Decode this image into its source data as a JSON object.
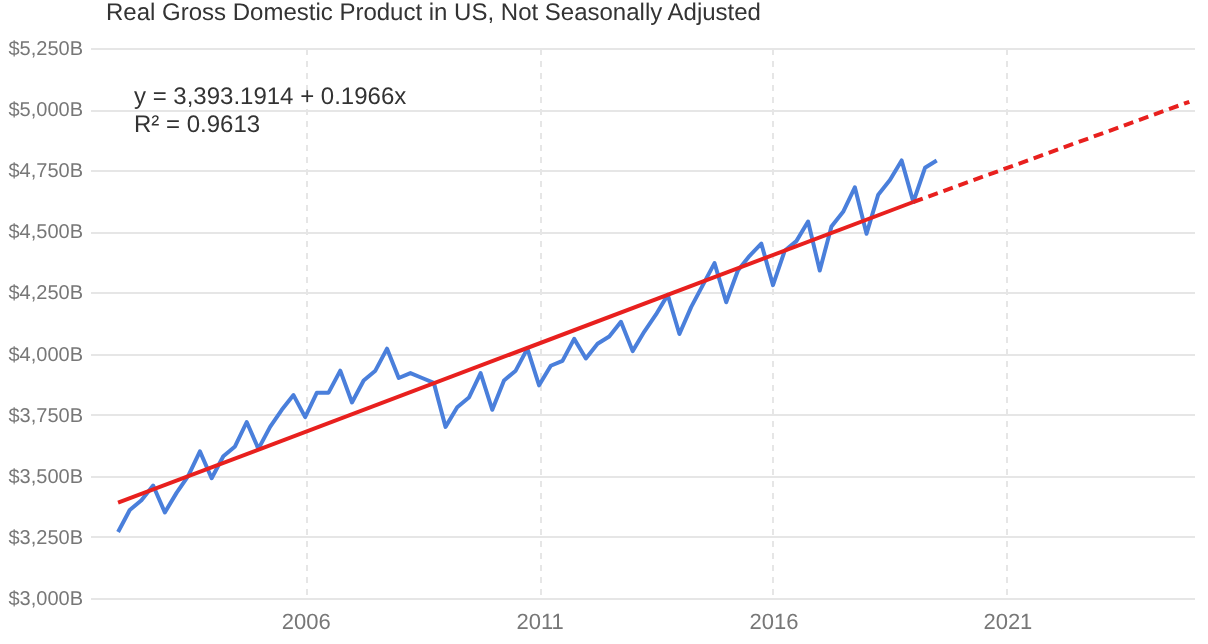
{
  "chart_data": {
    "type": "line",
    "title": "Real Gross Domestic Product in US, Not Seasonally Adjusted",
    "annotations": [
      "y = 3,393.1914 + 0.1966x",
      "R² = 0.9613"
    ],
    "x": [
      2002,
      2002.25,
      2002.5,
      2002.75,
      2003,
      2003.25,
      2003.5,
      2003.75,
      2004,
      2004.25,
      2004.5,
      2004.75,
      2005,
      2005.25,
      2005.5,
      2005.75,
      2006,
      2006.25,
      2006.5,
      2006.75,
      2007,
      2007.25,
      2007.5,
      2007.75,
      2008,
      2008.25,
      2008.5,
      2008.75,
      2009,
      2009.25,
      2009.5,
      2009.75,
      2010,
      2010.25,
      2010.5,
      2010.75,
      2011,
      2011.25,
      2011.5,
      2011.75,
      2012,
      2012.25,
      2012.5,
      2012.75,
      2013,
      2013.25,
      2013.5,
      2013.75,
      2014,
      2014.25,
      2014.5,
      2014.75,
      2015,
      2015.25,
      2015.5,
      2015.75,
      2016,
      2016.25,
      2016.5,
      2016.75,
      2017,
      2017.25,
      2017.5,
      2017.75,
      2018,
      2018.25,
      2018.5,
      2018.75,
      2019,
      2019.25,
      2019.5
    ],
    "series": [
      {
        "color": "#4a7fdb",
        "values": [
          3270,
          3360,
          3400,
          3460,
          3350,
          3430,
          3500,
          3600,
          3490,
          3580,
          3620,
          3720,
          3610,
          3700,
          3770,
          3830,
          3740,
          3840,
          3840,
          3930,
          3800,
          3890,
          3930,
          4020,
          3900,
          3920,
          3900,
          3880,
          3700,
          3780,
          3820,
          3920,
          3770,
          3890,
          3930,
          4020,
          3870,
          3950,
          3970,
          4060,
          3980,
          4040,
          4070,
          4130,
          4010,
          4090,
          4160,
          4240,
          4080,
          4190,
          4280,
          4370,
          4210,
          4340,
          4400,
          4450,
          4280,
          4420,
          4460,
          4540,
          4340,
          4520,
          4580,
          4680,
          4490,
          4650,
          4710,
          4790,
          4620,
          4760,
          4790
        ]
      },
      {
        "type": "line",
        "color": "#e8201e",
        "x": [
          2002,
          2019
        ],
        "values": [
          3390,
          4620
        ]
      },
      {
        "type": "line",
        "color": "#e8201e",
        "line_style": "dashed",
        "x": [
          2019,
          2024.9
        ],
        "values": [
          4620,
          5030
        ]
      }
    ],
    "xlim": [
      2001.4,
      2025
    ],
    "xticks": [
      2006,
      2011,
      2016,
      2021
    ],
    "ylim": [
      3000,
      5250
    ],
    "yticks": [
      {
        "value": 3000,
        "label": "$3,000B"
      },
      {
        "value": 3250,
        "label": "$3,250B"
      },
      {
        "value": 3500,
        "label": "$3,500B"
      },
      {
        "value": 3750,
        "label": "$3,750B"
      },
      {
        "value": 4000,
        "label": "$4,000B"
      },
      {
        "value": 4250,
        "label": "$4,250B"
      },
      {
        "value": 4500,
        "label": "$4,500B"
      },
      {
        "value": 4750,
        "label": "$4,750B"
      },
      {
        "value": 5000,
        "label": "$5,000B"
      },
      {
        "value": 5250,
        "label": "$5,250B"
      }
    ],
    "grid": true
  }
}
